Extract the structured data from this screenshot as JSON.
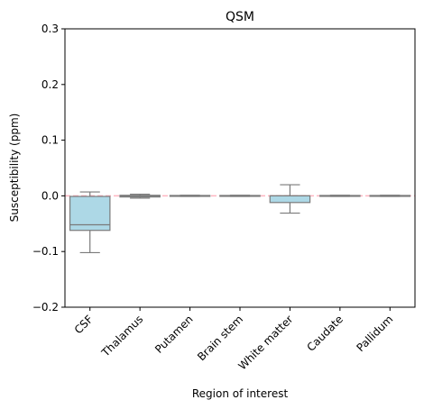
{
  "chart_data": {
    "type": "box",
    "title": "QSM",
    "xlabel": "Region of interest",
    "ylabel": "Susceptibility (ppm)",
    "ylim": [
      -0.2,
      0.3
    ],
    "yticks": [
      "−0.2",
      "−0.1",
      "0.0",
      "0.1",
      "0.2",
      "0.3"
    ],
    "ytick_values": [
      -0.2,
      -0.1,
      0.0,
      0.1,
      0.2,
      0.3
    ],
    "categories": [
      "CSF",
      "Thalamus",
      "Putamen",
      "Brain stem",
      "White matter",
      "Caudate",
      "Pallidum"
    ],
    "boxes": [
      {
        "whisker_low": -0.102,
        "q1": -0.062,
        "median": -0.052,
        "q3": -0.001,
        "whisker_high": 0.007
      },
      {
        "whisker_low": -0.004,
        "q1": -0.002,
        "median": 0.0,
        "q3": 0.001,
        "whisker_high": 0.003
      },
      {
        "whisker_low": -0.001,
        "q1": -0.0007,
        "median": 0.0,
        "q3": 0.0007,
        "whisker_high": 0.001
      },
      {
        "whisker_low": -0.001,
        "q1": -0.0007,
        "median": 0.0,
        "q3": 0.0007,
        "whisker_high": 0.001
      },
      {
        "whisker_low": -0.031,
        "q1": -0.012,
        "median": 0.0,
        "q3": 0.0,
        "whisker_high": 0.02
      },
      {
        "whisker_low": -0.001,
        "q1": -0.0007,
        "median": 0.0,
        "q3": 0.0007,
        "whisker_high": 0.001
      },
      {
        "whisker_low": -0.001,
        "q1": -0.0007,
        "median": 0.0,
        "q3": 0.0007,
        "whisker_high": 0.001
      }
    ],
    "reference_line": 0.0,
    "colors": {
      "box_fill": "#add8e6",
      "box_edge": "#7a7a7a",
      "reference_line": "#ffb6c1",
      "axis": "#000000"
    },
    "grid": false
  }
}
